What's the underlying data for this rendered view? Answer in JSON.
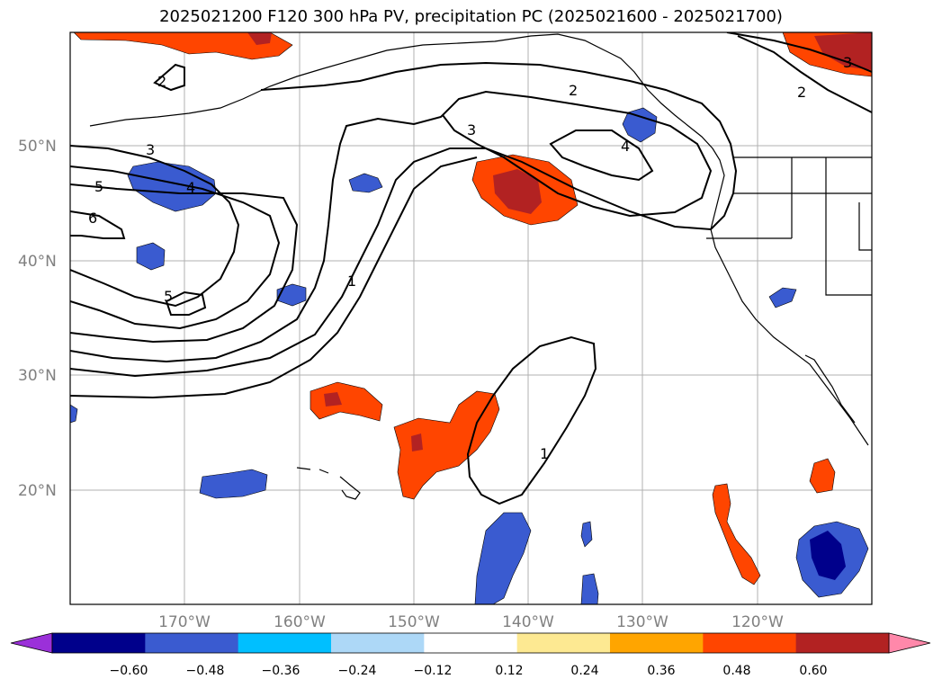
{
  "title": "2025021200 F120 300 hPa PV, precipitation PC (2025021600 - 2025021700)",
  "map": {
    "extent": {
      "lon": [
        -180,
        -110
      ],
      "lat": [
        10,
        60
      ]
    },
    "lat_labels": [
      "50°N",
      "40°N",
      "30°N",
      "20°N"
    ],
    "lon_labels": [
      "170°W",
      "160°W",
      "150°W",
      "140°W",
      "130°W",
      "120°W"
    ],
    "contour_labels": [
      "2",
      "3",
      "5",
      "4",
      "6",
      "5",
      "1",
      "3",
      "2",
      "4",
      "2",
      "3",
      "1"
    ]
  },
  "colorbar": {
    "ticks": [
      "−0.60",
      "−0.48",
      "−0.36",
      "−0.24",
      "−0.12",
      "0.12",
      "0.24",
      "0.36",
      "0.48",
      "0.60"
    ],
    "colors": [
      "#9b30d9",
      "#00008b",
      "#3a5bd0",
      "#00bfff",
      "#add8f7",
      "#ffffff",
      "#fde992",
      "#ffa500",
      "#ff4500",
      "#b22222",
      "#ff88aa"
    ]
  }
}
